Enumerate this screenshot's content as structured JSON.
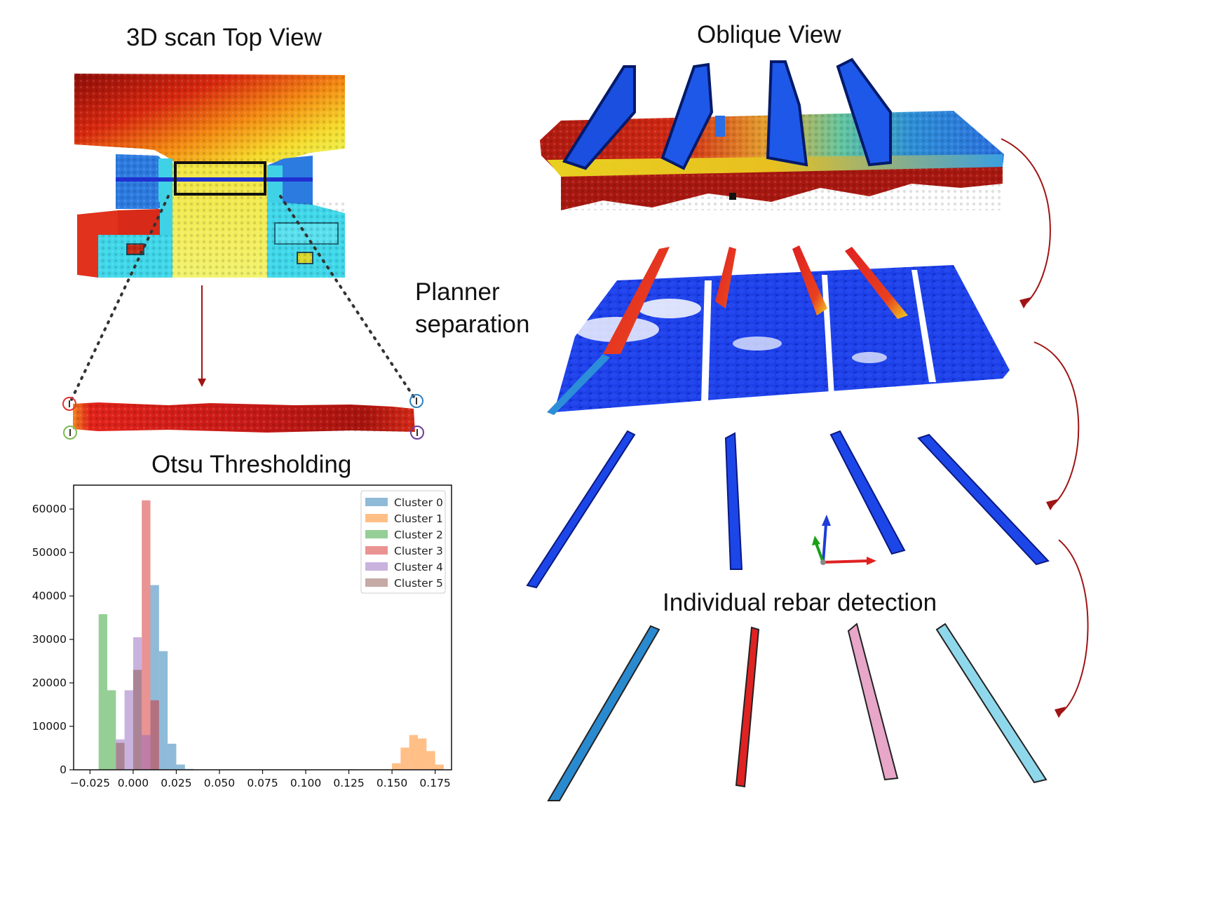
{
  "titles": {
    "top_view": "3D scan Top View",
    "oblique_view": "Oblique View",
    "planner_separation_line1": "Planner",
    "planner_separation_line2": "separation",
    "otsu": "Otsu Thresholding",
    "individual_rebar": "Individual rebar detection"
  },
  "colors": {
    "arrow": "#a01414",
    "frame": "#111111",
    "corner_markers": [
      "#e23232",
      "#2f7fbf",
      "#7dbb52",
      "#6a3d9a"
    ],
    "rebar_instances": [
      "#2a8ad0",
      "#e02222",
      "#e8a6c8",
      "#8fd8ec"
    ],
    "axis_x": "#e02020",
    "axis_y": "#18a018",
    "axis_z": "#1e3cd8"
  },
  "chart_data": {
    "type": "bar",
    "x_ticks": [
      "−0.025",
      "0.000",
      "0.025",
      "0.050",
      "0.075",
      "0.100",
      "0.125",
      "0.150",
      "0.175"
    ],
    "x_tick_values": [
      -0.025,
      0.0,
      0.025,
      0.05,
      0.075,
      0.1,
      0.125,
      0.15,
      0.175
    ],
    "y_ticks": [
      "0",
      "10000",
      "20000",
      "30000",
      "40000",
      "50000",
      "60000"
    ],
    "y_tick_values": [
      0,
      10000,
      20000,
      30000,
      40000,
      50000,
      60000
    ],
    "xlim": [
      -0.0345,
      0.1845
    ],
    "ylim": [
      0,
      65500
    ],
    "legend_position": "top-right",
    "grid": false,
    "bin_width": 0.005,
    "series": [
      {
        "name": "Cluster 0",
        "color": "#1f77b4",
        "bins": [
          [
            0.01,
            42500
          ],
          [
            0.015,
            27300
          ],
          [
            0.02,
            6000
          ],
          [
            0.025,
            1200
          ],
          [
            0.03,
            200
          ]
        ]
      },
      {
        "name": "Cluster 1",
        "color": "#ff7f0e",
        "bins": [
          [
            0.125,
            150
          ],
          [
            0.15,
            1500
          ],
          [
            0.155,
            5100
          ],
          [
            0.16,
            8000
          ],
          [
            0.165,
            7200
          ],
          [
            0.17,
            4300
          ],
          [
            0.175,
            1200
          ]
        ]
      },
      {
        "name": "Cluster 2",
        "color": "#2ca02c",
        "bins": [
          [
            -0.02,
            35800
          ],
          [
            -0.015,
            18300
          ]
        ]
      },
      {
        "name": "Cluster 3",
        "color": "#d62728",
        "bins": [
          [
            0.005,
            62000
          ],
          [
            0.01,
            16000
          ]
        ]
      },
      {
        "name": "Cluster 4",
        "color": "#9467bd",
        "bins": [
          [
            -0.01,
            7000
          ],
          [
            -0.005,
            18300
          ],
          [
            0.0,
            30500
          ],
          [
            0.005,
            8000
          ]
        ]
      },
      {
        "name": "Cluster 5",
        "color": "#8c564b",
        "bins": [
          [
            -0.01,
            6200
          ],
          [
            0.0,
            23000
          ]
        ]
      }
    ]
  }
}
